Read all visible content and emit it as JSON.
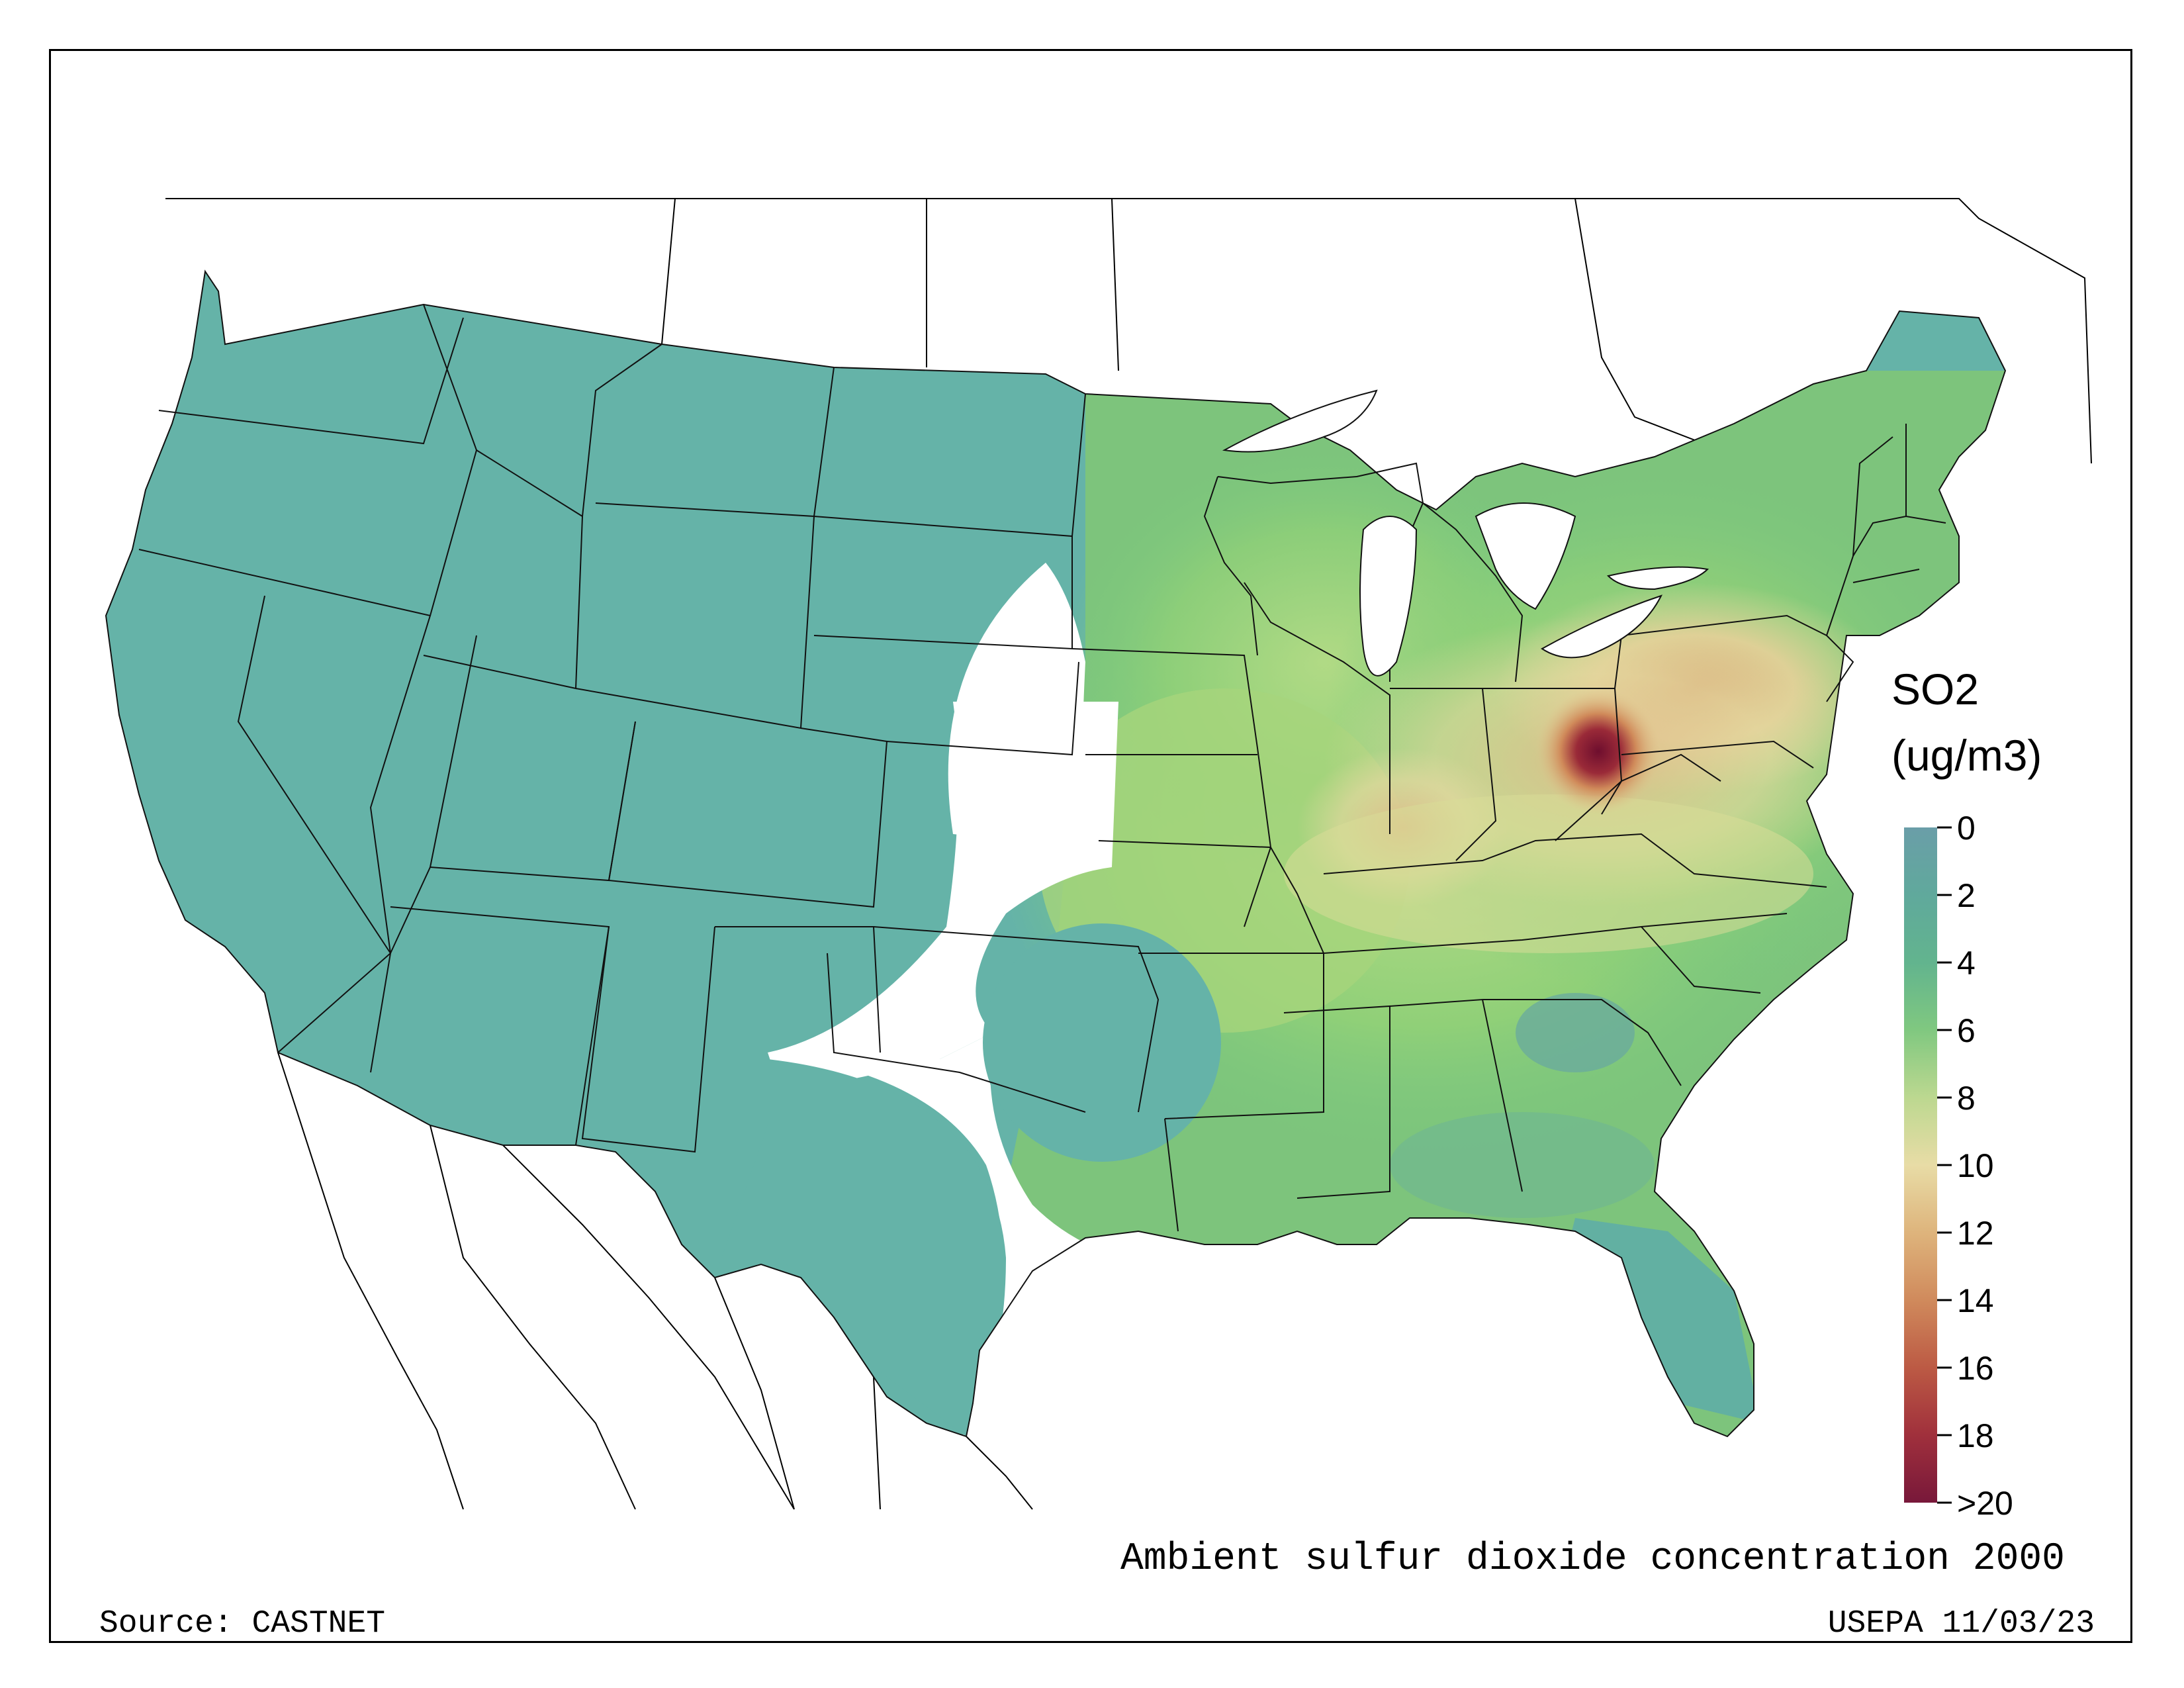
{
  "map": {
    "title": "Ambient sulfur dioxide concentration 2000",
    "source": "Source: CASTNET",
    "credit": "USEPA 11/03/23",
    "legend": {
      "title_line1": "SO2",
      "title_line2": "(ug/m3)",
      "ticks": [
        "0",
        "2",
        "4",
        "6",
        "8",
        "10",
        "12",
        "14",
        "16",
        "18",
        ">20"
      ],
      "colors": [
        "#6a9ea8",
        "#60a99c",
        "#6cc08a",
        "#a8d878",
        "#e8dca0",
        "#e8d8a0",
        "#d9a36a",
        "#cc7a4f",
        "#b84a3a",
        "#9a2a38",
        "#7a1a3a"
      ]
    }
  }
}
